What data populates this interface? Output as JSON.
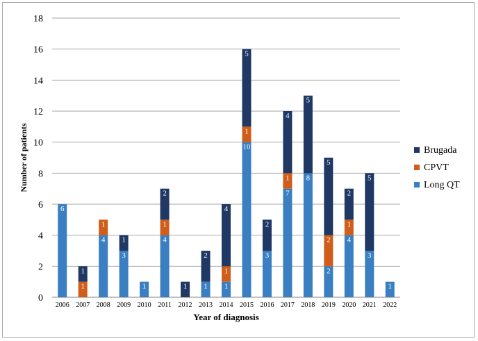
{
  "chart_data": {
    "type": "bar",
    "stacked": true,
    "xlabel": "Year of diagnosis",
    "ylabel": "Number of patients",
    "ylim": [
      0,
      18
    ],
    "yticks": [
      0,
      2,
      4,
      6,
      8,
      10,
      12,
      14,
      16,
      18
    ],
    "grid": true,
    "legend_position": "right",
    "categories": [
      "2006",
      "2007",
      "2008",
      "2009",
      "2010",
      "2011",
      "2012",
      "2013",
      "2014",
      "2015",
      "2016",
      "2017",
      "2018",
      "2019",
      "2020",
      "2021",
      "2022"
    ],
    "series": [
      {
        "name": "Long QT",
        "color": "#3a7fc1",
        "values": [
          6,
          0,
          4,
          3,
          1,
          4,
          0,
          1,
          1,
          10,
          3,
          7,
          8,
          2,
          4,
          3,
          1
        ]
      },
      {
        "name": "CPVT",
        "color": "#d05e1a",
        "values": [
          0,
          1,
          1,
          0,
          0,
          1,
          0,
          0,
          1,
          1,
          0,
          1,
          0,
          2,
          1,
          0,
          0
        ]
      },
      {
        "name": "Brugada",
        "color": "#1f3864",
        "values": [
          0,
          1,
          0,
          1,
          0,
          2,
          1,
          2,
          4,
          5,
          2,
          4,
          5,
          5,
          2,
          5,
          0
        ]
      }
    ],
    "legend_order": [
      "Brugada",
      "CPVT",
      "Long QT"
    ]
  }
}
